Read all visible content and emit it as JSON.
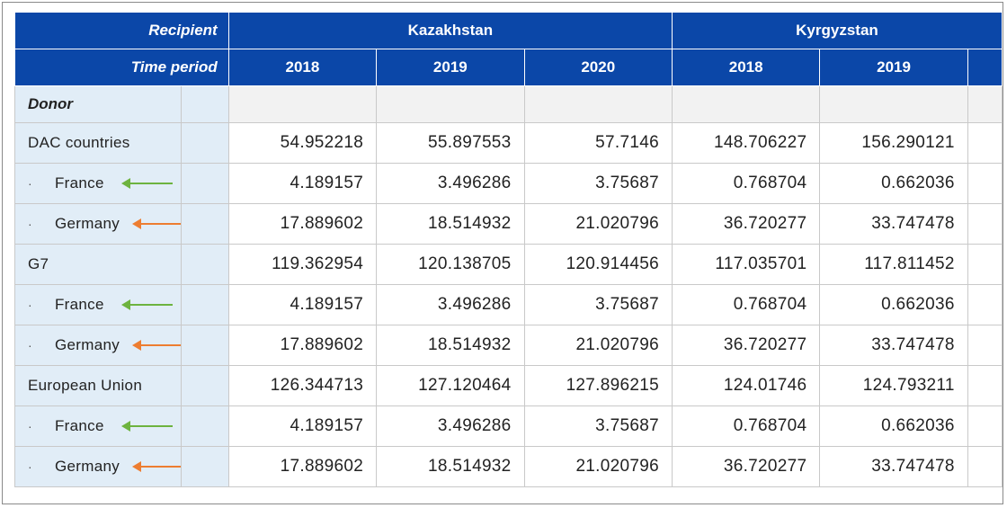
{
  "header": {
    "recipient_label": "Recipient",
    "time_period_label": "Time period",
    "recipients": [
      "Kazakhstan",
      "Kyrgyzstan"
    ],
    "years": [
      "2018",
      "2019",
      "2020",
      "2018",
      "2019"
    ]
  },
  "donor_label": "Donor",
  "rows": [
    {
      "name": "DAC countries",
      "sub": false,
      "values": [
        "54.952218",
        "55.897553",
        "57.7146",
        "148.706227",
        "156.290121"
      ]
    },
    {
      "name": "France",
      "sub": true,
      "arrow": "green",
      "values": [
        "4.189157",
        "3.496286",
        "3.75687",
        "0.768704",
        "0.662036"
      ]
    },
    {
      "name": "Germany",
      "sub": true,
      "arrow": "orange",
      "values": [
        "17.889602",
        "18.514932",
        "21.020796",
        "36.720277",
        "33.747478"
      ]
    },
    {
      "name": "G7",
      "sub": false,
      "values": [
        "119.362954",
        "120.138705",
        "120.914456",
        "117.035701",
        "117.811452"
      ]
    },
    {
      "name": "France",
      "sub": true,
      "arrow": "green",
      "values": [
        "4.189157",
        "3.496286",
        "3.75687",
        "0.768704",
        "0.662036"
      ]
    },
    {
      "name": "Germany",
      "sub": true,
      "arrow": "orange",
      "values": [
        "17.889602",
        "18.514932",
        "21.020796",
        "36.720277",
        "33.747478"
      ]
    },
    {
      "name": "European Union",
      "sub": false,
      "values": [
        "126.344713",
        "127.120464",
        "127.896215",
        "124.01746",
        "124.793211"
      ]
    },
    {
      "name": "France",
      "sub": true,
      "arrow": "green",
      "values": [
        "4.189157",
        "3.496286",
        "3.75687",
        "0.768704",
        "0.662036"
      ]
    },
    {
      "name": "Germany",
      "sub": true,
      "arrow": "orange",
      "values": [
        "17.889602",
        "18.514932",
        "21.020796",
        "36.720277",
        "33.747478"
      ]
    }
  ],
  "sub_bullet": "·",
  "colors": {
    "header_bg": "#0b47a8",
    "label_bg": "#e1edf7",
    "arrow_france": "#6db33f",
    "arrow_germany": "#ed7d31"
  }
}
